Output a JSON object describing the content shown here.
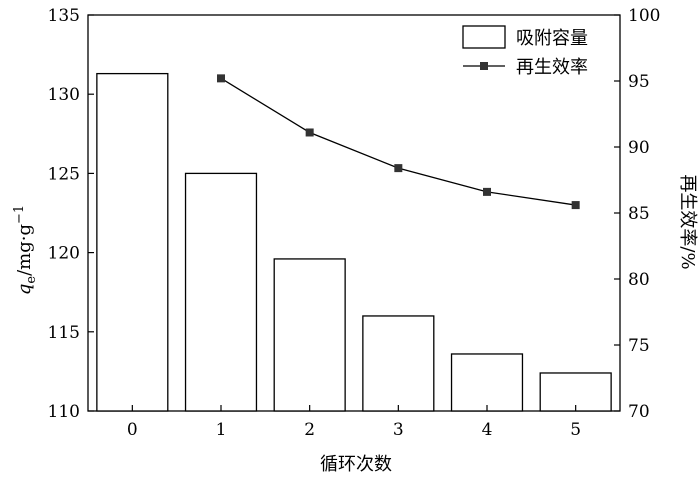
{
  "chart_data": {
    "type": "bar",
    "categories": [
      "0",
      "1",
      "2",
      "3",
      "4",
      "5"
    ],
    "xlabel": "循环次数",
    "ylabel_left": {
      "symbol": "q",
      "subscript": "e",
      "unit": "/mg·g",
      "superscript": "−1"
    },
    "ylabel_right": "再生效率/%",
    "ylim_left": [
      110,
      135
    ],
    "yticks_left": [
      110,
      115,
      120,
      125,
      130,
      135
    ],
    "ylim_right": [
      70,
      100
    ],
    "yticks_right": [
      70,
      75,
      80,
      85,
      90,
      95,
      100
    ],
    "series": [
      {
        "name": "吸附容量",
        "type": "bar",
        "axis": "left",
        "values": [
          131.3,
          125.0,
          119.6,
          116.0,
          113.6,
          112.4
        ]
      },
      {
        "name": "再生效率",
        "type": "line",
        "axis": "right",
        "marker": "square",
        "x": [
          "1",
          "2",
          "3",
          "4",
          "5"
        ],
        "values": [
          95.2,
          91.1,
          88.4,
          86.6,
          85.6
        ]
      }
    ],
    "legend_position": "top-right",
    "colors": {
      "bar_fill": "#ffffff",
      "bar_stroke": "#000000",
      "line": "#000000"
    }
  }
}
